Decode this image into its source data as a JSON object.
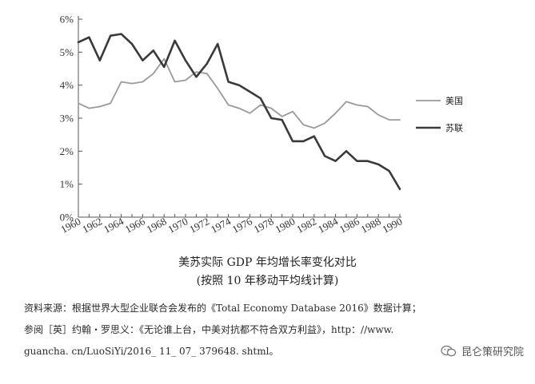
{
  "chart_data": {
    "type": "line",
    "x": [
      1960,
      1961,
      1962,
      1963,
      1964,
      1965,
      1966,
      1967,
      1968,
      1969,
      1970,
      1971,
      1972,
      1973,
      1974,
      1975,
      1976,
      1977,
      1978,
      1979,
      1980,
      1981,
      1982,
      1983,
      1984,
      1985,
      1986,
      1987,
      1988,
      1989,
      1990
    ],
    "series": [
      {
        "name": "美国",
        "color": "#9a9a9a",
        "values": [
          3.45,
          3.3,
          3.35,
          3.45,
          4.1,
          4.05,
          4.1,
          4.35,
          4.8,
          4.1,
          4.15,
          4.4,
          4.35,
          3.9,
          3.4,
          3.3,
          3.15,
          3.4,
          3.3,
          3.05,
          3.2,
          2.8,
          2.7,
          2.85,
          3.15,
          3.5,
          3.4,
          3.35,
          3.1,
          2.95,
          2.95
        ]
      },
      {
        "name": "苏联",
        "color": "#3a3a3a",
        "values": [
          5.3,
          5.45,
          4.75,
          5.5,
          5.55,
          5.25,
          4.75,
          5.05,
          4.55,
          5.35,
          4.75,
          4.25,
          4.65,
          5.25,
          4.1,
          4.0,
          3.8,
          3.6,
          3.0,
          2.95,
          2.3,
          2.3,
          2.45,
          1.85,
          1.7,
          2.0,
          1.7,
          1.7,
          1.6,
          1.4,
          0.85
        ]
      }
    ],
    "x_ticks": [
      "1960",
      "1962",
      "1964",
      "1966",
      "1968",
      "1970",
      "1972",
      "1974",
      "1976",
      "1978",
      "1980",
      "1982",
      "1984",
      "1986",
      "1988",
      "1990"
    ],
    "y_ticks": [
      "0%",
      "1%",
      "2%",
      "3%",
      "4%",
      "5%",
      "6%"
    ],
    "xlim": [
      1960,
      1990
    ],
    "ylim": [
      0,
      6
    ],
    "grid": false,
    "legend_position": "right"
  },
  "caption": {
    "title": "美苏实际 GDP 年均增长率变化对比",
    "subtitle": "(按照 10 年移动平均线计算)"
  },
  "source": {
    "line1": "资料来源：根据世界大型企业联合会发布的《Total Economy Database 2016》数据计算；",
    "line2": "参阅［英］约翰・罗思义：《无论谁上台，中美对抗都不符合双方利益》，http：//www.",
    "line3": "guancha. cn/LuoSiYi/2016_ 11_ 07_ 379648. shtml。"
  },
  "watermark": {
    "text": "昆仑策研究院",
    "icon": "wechat-icon"
  }
}
